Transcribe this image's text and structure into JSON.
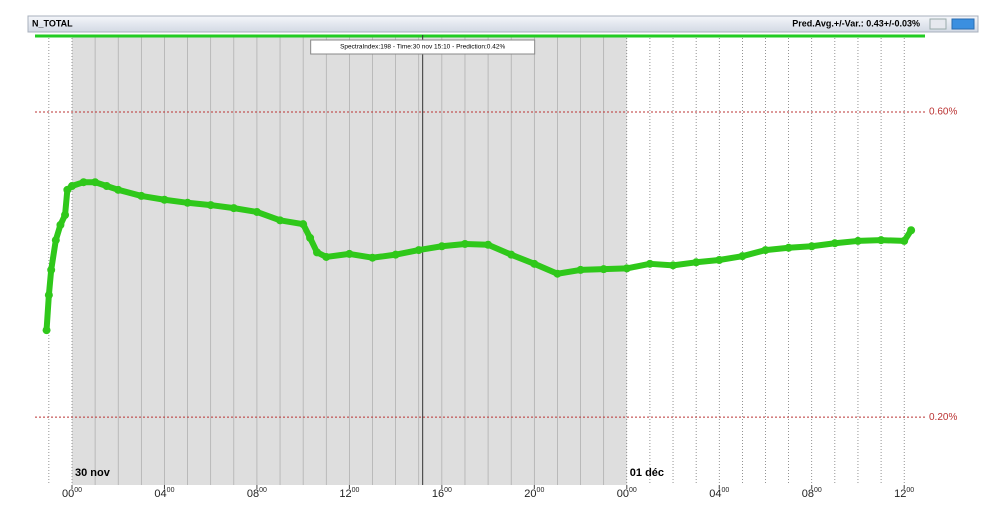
{
  "window": {
    "title": "N_TOTAL",
    "status": "Pred.Avg.+/-Var.: 0.43+/-0.03%"
  },
  "chart_data": {
    "type": "scatter",
    "x": [
      -1.1,
      -1.0,
      -0.9,
      -0.7,
      -0.5,
      -0.3,
      -0.2,
      0,
      0.5,
      1,
      1.5,
      2,
      3,
      4,
      5,
      6,
      7,
      8,
      9,
      10,
      10.3,
      10.6,
      11,
      12,
      13,
      14,
      15,
      16,
      17,
      18,
      19,
      20,
      21,
      22,
      23,
      24,
      25,
      26,
      27,
      28,
      29,
      30,
      31,
      32,
      33,
      34,
      35,
      36,
      36.3
    ],
    "series": [
      {
        "color": "#2fc81a",
        "values": [
          0.314,
          0.36,
          0.393,
          0.432,
          0.452,
          0.465,
          0.498,
          0.503,
          0.508,
          0.508,
          0.503,
          0.498,
          0.49,
          0.485,
          0.481,
          0.478,
          0.474,
          0.469,
          0.458,
          0.453,
          0.435,
          0.416,
          0.41,
          0.414,
          0.409,
          0.413,
          0.419,
          0.424,
          0.427,
          0.426,
          0.413,
          0.401,
          0.388,
          0.393,
          0.394,
          0.395,
          0.401,
          0.399,
          0.403,
          0.406,
          0.411,
          0.419,
          0.422,
          0.424,
          0.428,
          0.431,
          0.432,
          0.431,
          0.445
        ]
      }
    ],
    "xlim": [
      -1.6,
      36.9
    ],
    "ylim": [
      0.111,
      0.701
    ],
    "xticks": [
      {
        "value": 0,
        "label": "0000"
      },
      {
        "value": 4,
        "label": "0400"
      },
      {
        "value": 8,
        "label": "0800"
      },
      {
        "value": 12,
        "label": "1200"
      },
      {
        "value": 16,
        "label": "1600"
      },
      {
        "value": 20,
        "label": "2000"
      },
      {
        "value": 24,
        "label": "0000"
      },
      {
        "value": 28,
        "label": "0400"
      },
      {
        "value": 32,
        "label": "0800"
      },
      {
        "value": 36,
        "label": "1200"
      }
    ],
    "xminorticks": [
      -1,
      0,
      1,
      2,
      3,
      4,
      5,
      6,
      7,
      8,
      9,
      10,
      11,
      12,
      13,
      14,
      15,
      16,
      17,
      18,
      19,
      20,
      21,
      22,
      23,
      24,
      25,
      26,
      27,
      28,
      29,
      30,
      31,
      32,
      33,
      34,
      35,
      36
    ],
    "yticks": [
      {
        "value": 0.6,
        "label": "0.60%"
      },
      {
        "value": 0.2,
        "label": "0.20%"
      }
    ],
    "shaded": [
      0,
      24
    ],
    "date_labels": [
      {
        "x": 0,
        "text": "30 nov"
      },
      {
        "x": 24,
        "text": "01 déc"
      }
    ],
    "annotation": {
      "x": 15.17,
      "text": "SpectraIndex:198 - Time:30 nov 15:10 - Prediction:0.42%"
    }
  }
}
